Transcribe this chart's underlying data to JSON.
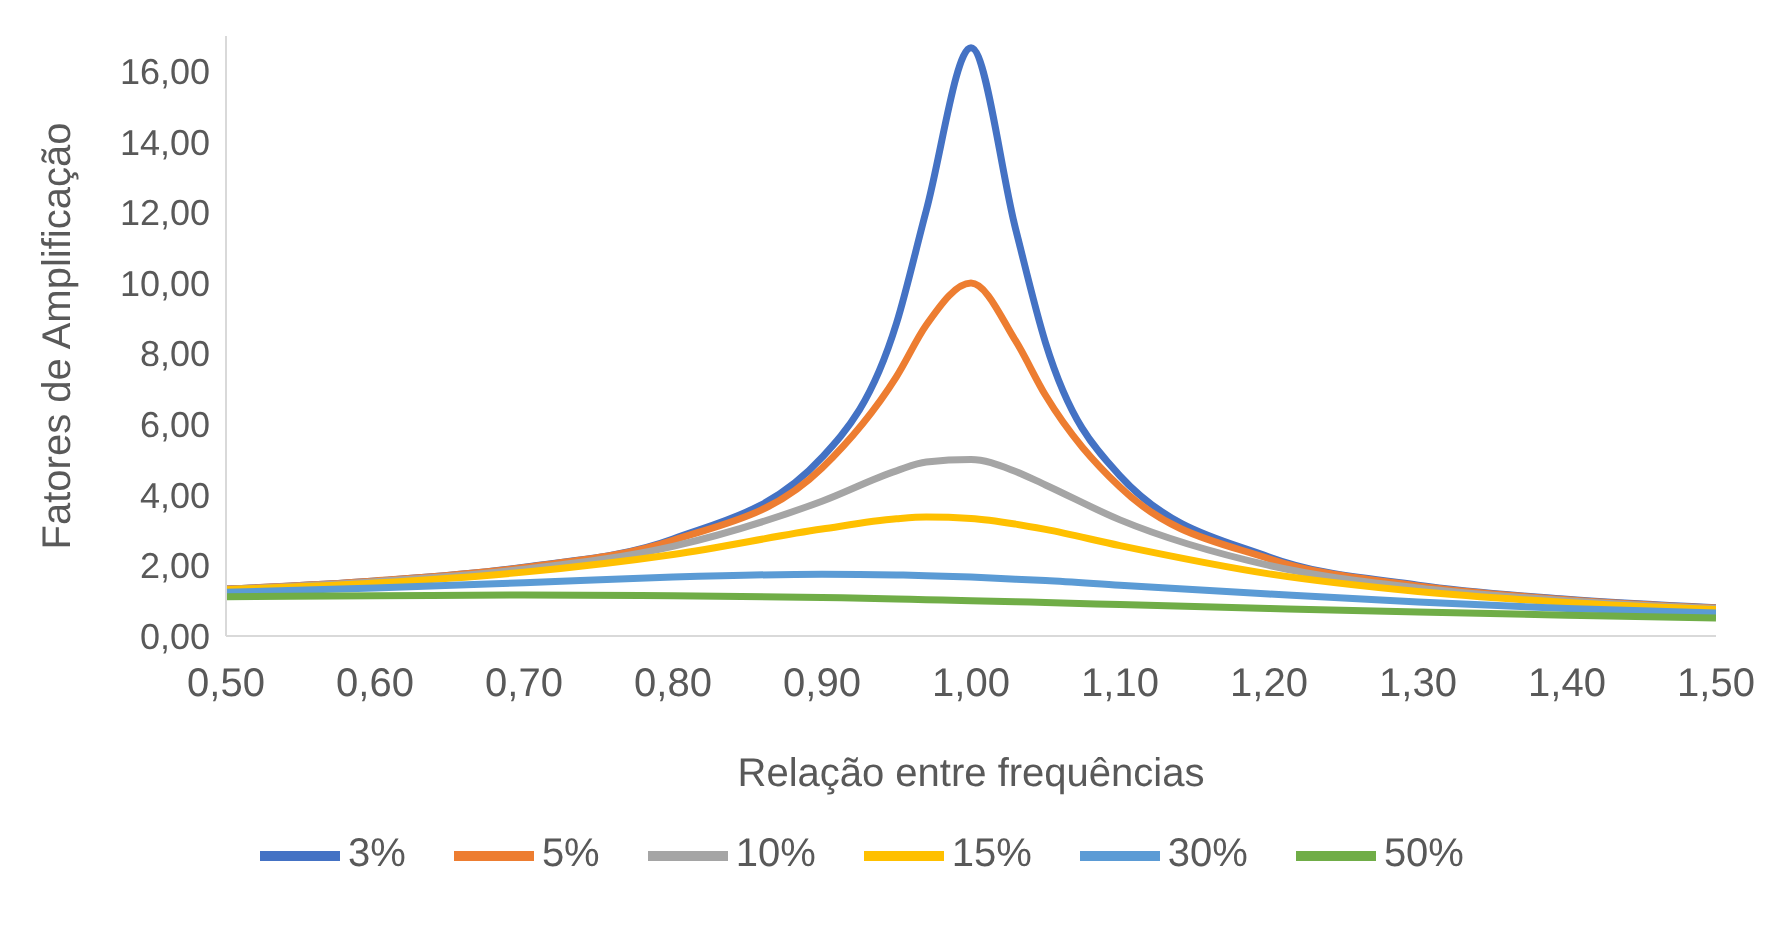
{
  "chart_data": {
    "type": "line",
    "xlabel": "Relação entre frequências",
    "ylabel": "Fatores de Amplificação",
    "x": [
      0.5,
      0.6,
      0.7,
      0.8,
      0.9,
      0.95,
      0.97,
      1.0,
      1.03,
      1.05,
      1.1,
      1.2,
      1.3,
      1.4,
      1.5
    ],
    "series": [
      {
        "name": "3%",
        "color": "#4472c4",
        "values": [
          1.33,
          1.56,
          1.95,
          2.75,
          5.06,
          8.86,
          12.06,
          16.67,
          11.52,
          8.31,
          4.54,
          2.24,
          1.44,
          1.04,
          0.8
        ]
      },
      {
        "name": "5%",
        "color": "#ed7d31",
        "values": [
          1.33,
          1.56,
          1.94,
          2.71,
          4.76,
          7.35,
          8.81,
          10.0,
          8.36,
          6.82,
          4.22,
          2.19,
          1.42,
          1.03,
          0.79
        ]
      },
      {
        "name": "10%",
        "color": "#a5a5a5",
        "values": [
          1.32,
          1.54,
          1.89,
          2.54,
          3.82,
          4.68,
          4.93,
          5.0,
          4.66,
          4.28,
          3.29,
          2.0,
          1.36,
          1.0,
          0.78
        ]
      },
      {
        "name": "15%",
        "color": "#ffc000",
        "values": [
          1.31,
          1.5,
          1.81,
          2.31,
          3.03,
          3.32,
          3.37,
          3.33,
          3.17,
          3.02,
          2.56,
          1.76,
          1.26,
          0.95,
          0.75
        ]
      },
      {
        "name": "30%",
        "color": "#5b9bd5",
        "values": [
          1.24,
          1.36,
          1.51,
          1.67,
          1.75,
          1.73,
          1.71,
          1.67,
          1.61,
          1.57,
          1.44,
          1.19,
          0.96,
          0.78,
          0.65
        ]
      },
      {
        "name": "50%",
        "color": "#70ad47",
        "values": [
          1.11,
          1.14,
          1.16,
          1.14,
          1.09,
          1.05,
          1.03,
          1.0,
          0.97,
          0.95,
          0.89,
          0.78,
          0.68,
          0.59,
          0.51
        ]
      }
    ],
    "xlim": [
      0.5,
      1.5
    ],
    "xticks": [
      {
        "value": 0.5,
        "label": "0,50"
      },
      {
        "value": 0.6,
        "label": "0,60"
      },
      {
        "value": 0.7,
        "label": "0,70"
      },
      {
        "value": 0.8,
        "label": "0,80"
      },
      {
        "value": 0.9,
        "label": "0,90"
      },
      {
        "value": 1.0,
        "label": "1,00"
      },
      {
        "value": 1.1,
        "label": "1,10"
      },
      {
        "value": 1.2,
        "label": "1,20"
      },
      {
        "value": 1.3,
        "label": "1,30"
      },
      {
        "value": 1.4,
        "label": "1,40"
      },
      {
        "value": 1.5,
        "label": "1,50"
      }
    ],
    "ylim": [
      0,
      17
    ],
    "yticks": [
      {
        "value": 0,
        "label": "0,00"
      },
      {
        "value": 2,
        "label": "2,00"
      },
      {
        "value": 4,
        "label": "4,00"
      },
      {
        "value": 6,
        "label": "6,00"
      },
      {
        "value": 8,
        "label": "8,00"
      },
      {
        "value": 10,
        "label": "10,00"
      },
      {
        "value": 12,
        "label": "12,00"
      },
      {
        "value": 14,
        "label": "14,00"
      },
      {
        "value": 16,
        "label": "16,00"
      }
    ],
    "grid": false,
    "legend": "bottom",
    "marker": "none",
    "line_style": "solid"
  }
}
